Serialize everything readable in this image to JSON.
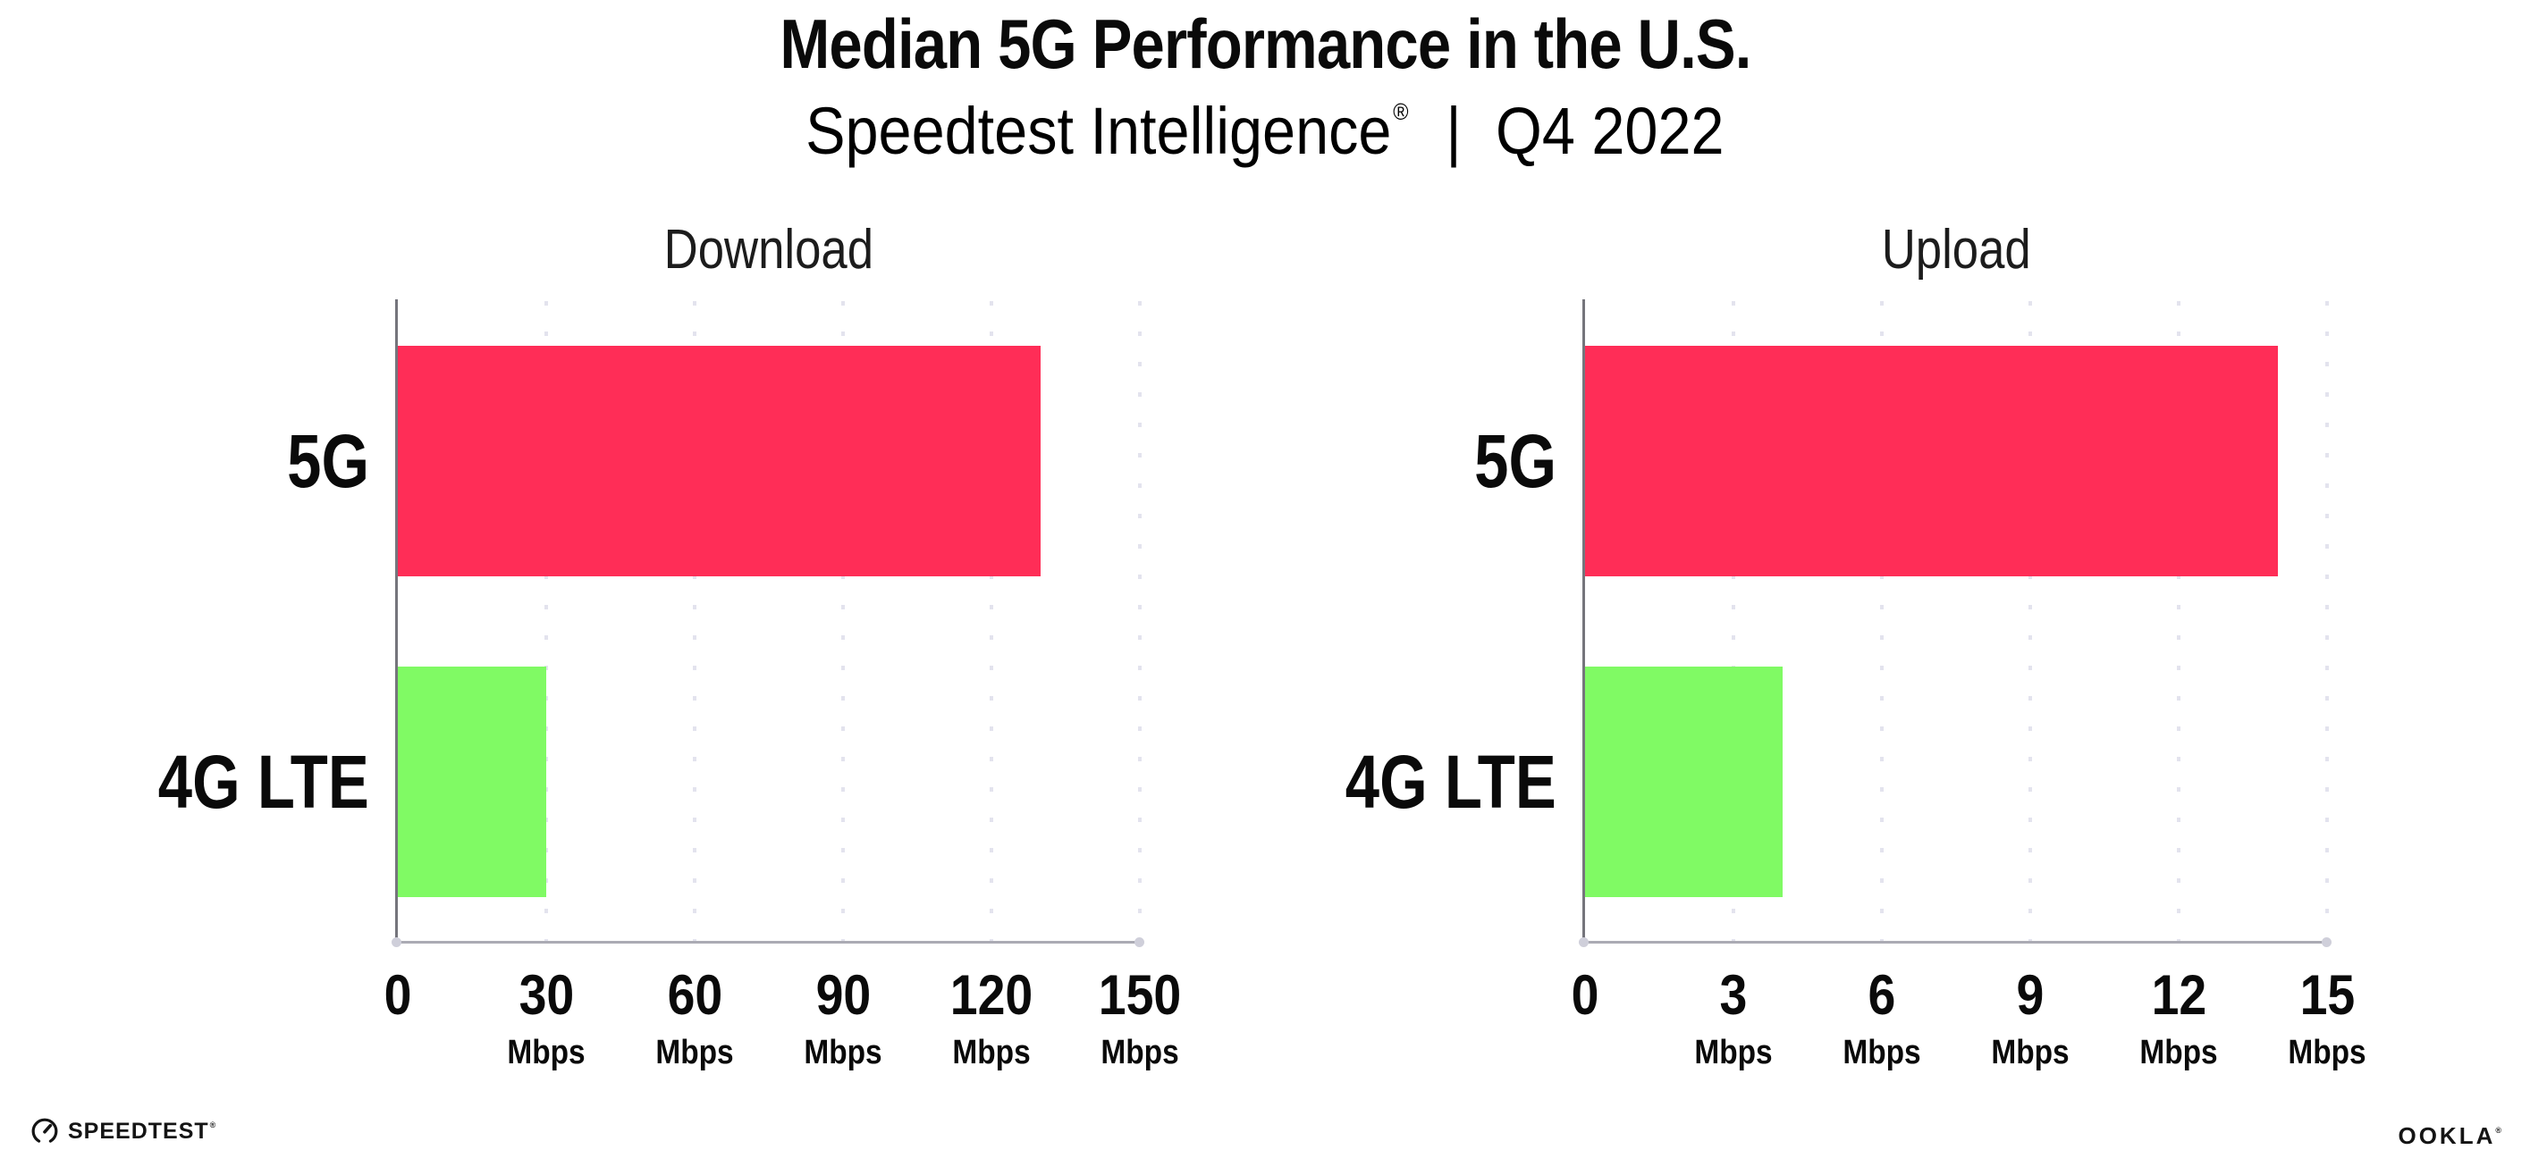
{
  "header": {
    "title": "Median 5G Performance in the U.S.",
    "subtitle_brand": "Speedtest Intelligence",
    "subtitle_reg": "®",
    "subtitle_divider": "|",
    "subtitle_period": "Q4 2022"
  },
  "chart_data": [
    {
      "type": "bar",
      "orientation": "horizontal",
      "title": "Download",
      "categories": [
        "5G",
        "4G LTE"
      ],
      "values": [
        130,
        30
      ],
      "unit": "Mbps",
      "xlim": [
        0,
        150
      ],
      "xticks": [
        0,
        30,
        60,
        90,
        120,
        150
      ],
      "bar_colors": [
        "#ff2d57",
        "#80fa64"
      ],
      "grid": "vertical-dotted",
      "legend": "none"
    },
    {
      "type": "bar",
      "orientation": "horizontal",
      "title": "Upload",
      "categories": [
        "5G",
        "4G LTE"
      ],
      "values": [
        14,
        4
      ],
      "unit": "Mbps",
      "xlim": [
        0,
        15
      ],
      "xticks": [
        0,
        3,
        6,
        9,
        12,
        15
      ],
      "bar_colors": [
        "#ff2d57",
        "#80fa64"
      ],
      "grid": "vertical-dotted",
      "legend": "none"
    }
  ],
  "charts": [
    {
      "heading": "Download",
      "rows": [
        {
          "label": "5G"
        },
        {
          "label": "4G LTE"
        }
      ],
      "ticks": [
        {
          "label": "0",
          "unit": ""
        },
        {
          "label": "30",
          "unit": "Mbps"
        },
        {
          "label": "60",
          "unit": "Mbps"
        },
        {
          "label": "90",
          "unit": "Mbps"
        },
        {
          "label": "120",
          "unit": "Mbps"
        },
        {
          "label": "150",
          "unit": "Mbps"
        }
      ]
    },
    {
      "heading": "Upload",
      "rows": [
        {
          "label": "5G"
        },
        {
          "label": "4G LTE"
        }
      ],
      "ticks": [
        {
          "label": "0",
          "unit": ""
        },
        {
          "label": "3",
          "unit": "Mbps"
        },
        {
          "label": "6",
          "unit": "Mbps"
        },
        {
          "label": "9",
          "unit": "Mbps"
        },
        {
          "label": "12",
          "unit": "Mbps"
        },
        {
          "label": "15",
          "unit": "Mbps"
        }
      ]
    }
  ],
  "footer": {
    "speedtest_wordmark": "SPEEDTEST",
    "speedtest_mark": "®",
    "ookla_wordmark": "OOKLA",
    "ookla_mark": "®"
  }
}
